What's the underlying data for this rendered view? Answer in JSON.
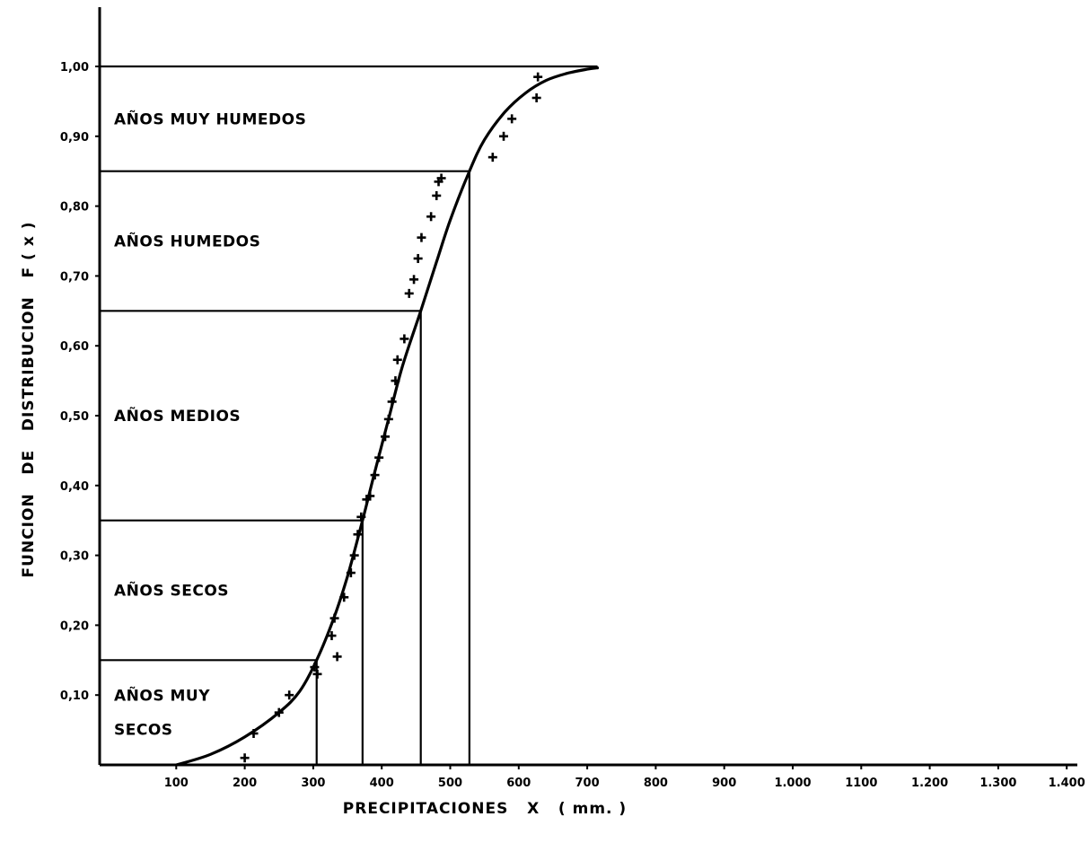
{
  "chart_data": {
    "type": "line",
    "xlabel": "PRECIPITACIONES   X   ( mm. )",
    "ylabel": "FUNCION   DE   DISTRIBUCION   F ( x )",
    "xlim": [
      0,
      1400
    ],
    "ylim": [
      0,
      1.0
    ],
    "x_tick_labels": [
      {
        "value": 100,
        "label": "100"
      },
      {
        "value": 200,
        "label": "200"
      },
      {
        "value": 300,
        "label": "300"
      },
      {
        "value": 400,
        "label": "400"
      },
      {
        "value": 500,
        "label": "500"
      },
      {
        "value": 600,
        "label": "600"
      },
      {
        "value": 700,
        "label": "700"
      },
      {
        "value": 800,
        "label": "800"
      },
      {
        "value": 900,
        "label": "900"
      },
      {
        "value": 1000,
        "label": "1.000"
      },
      {
        "value": 1100,
        "label": "1100"
      },
      {
        "value": 1200,
        "label": "1.200"
      },
      {
        "value": 1300,
        "label": "1.300"
      },
      {
        "value": 1400,
        "label": "1.400"
      }
    ],
    "y_tick_labels": [
      {
        "value": 0.1,
        "label": "0,10"
      },
      {
        "value": 0.2,
        "label": "0,20"
      },
      {
        "value": 0.3,
        "label": "0,30"
      },
      {
        "value": 0.4,
        "label": "0,40"
      },
      {
        "value": 0.5,
        "label": "0,50"
      },
      {
        "value": 0.6,
        "label": "0,60"
      },
      {
        "value": 0.7,
        "label": "0,70"
      },
      {
        "value": 0.8,
        "label": "0,80"
      },
      {
        "value": 0.9,
        "label": "0,90"
      },
      {
        "value": 1.0,
        "label": "1,00"
      }
    ],
    "zones": [
      {
        "lines": [
          "AÑOS  MUY",
          "SECOS"
        ],
        "y_from": 0.0,
        "y_to": 0.15,
        "x_to": 305
      },
      {
        "lines": [
          "AÑOS   SECOS"
        ],
        "y_from": 0.15,
        "y_to": 0.35,
        "x_to": 372
      },
      {
        "lines": [
          "AÑOS    MEDIOS"
        ],
        "y_from": 0.35,
        "y_to": 0.65,
        "x_to": 457
      },
      {
        "lines": [
          "AÑOS    HUMEDOS"
        ],
        "y_from": 0.65,
        "y_to": 0.85,
        "x_to": 528
      },
      {
        "lines": [
          "AÑOS   MUY   HUMEDOS"
        ],
        "y_from": 0.85,
        "y_to": 1.0,
        "x_to": 715
      }
    ],
    "series": [
      {
        "type": "line",
        "x": [
          100,
          150,
          200,
          250,
          280,
          305,
          330,
          350,
          372,
          390,
          410,
          430,
          457,
          480,
          500,
          528,
          550,
          580,
          610,
          640,
          670,
          700,
          715
        ],
        "y": [
          0.0,
          0.015,
          0.04,
          0.075,
          0.105,
          0.15,
          0.21,
          0.27,
          0.35,
          0.42,
          0.495,
          0.57,
          0.65,
          0.72,
          0.78,
          0.85,
          0.895,
          0.935,
          0.962,
          0.98,
          0.99,
          0.996,
          0.998
        ]
      },
      {
        "type": "scatter",
        "marker": "+",
        "x": [
          200,
          213,
          250,
          265,
          302,
          306,
          327,
          331,
          335,
          345,
          355,
          360,
          365,
          370,
          378,
          383,
          390,
          396,
          405,
          410,
          415,
          420,
          423,
          433,
          440,
          447,
          453,
          458,
          472,
          480,
          483,
          487,
          562,
          578,
          590,
          626,
          628
        ],
        "y": [
          0.01,
          0.045,
          0.075,
          0.1,
          0.14,
          0.13,
          0.185,
          0.21,
          0.155,
          0.24,
          0.275,
          0.3,
          0.33,
          0.355,
          0.38,
          0.385,
          0.415,
          0.44,
          0.47,
          0.495,
          0.52,
          0.55,
          0.58,
          0.61,
          0.675,
          0.695,
          0.725,
          0.755,
          0.785,
          0.815,
          0.835,
          0.84,
          0.87,
          0.9,
          0.925,
          0.955,
          0.985
        ]
      }
    ]
  }
}
